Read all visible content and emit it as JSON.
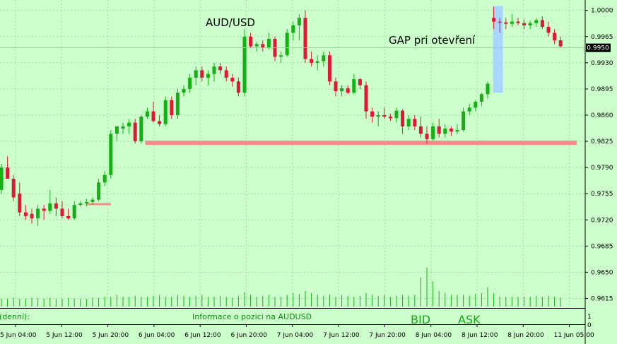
{
  "chart_data": {
    "type": "candlestick",
    "title": "AUD/USD",
    "annotation": "GAP pri otevření",
    "ylim": [
      0.9606,
      1.0012
    ],
    "y_ticks": [
      "1.0000",
      "0.9965",
      "0.9930",
      "0.9895",
      "0.9860",
      "0.9825",
      "0.9790",
      "0.9755",
      "0.9720",
      "0.9685",
      "0.9650",
      "0.9615"
    ],
    "current_price": "0.9950",
    "x_tick_labels": [
      "5 Jun 04:00",
      "5 Jun 12:00",
      "5 Jun 20:00",
      "6 Jun 04:00",
      "6 Jun 12:00",
      "6 Jun 20:00",
      "7 Jun 04:00",
      "7 Jun 12:00",
      "7 Jun 20:00",
      "8 Jun 04:00",
      "8 Jun 12:00",
      "8 Jun 20:00",
      "11 Jun 05:00"
    ],
    "candles": [
      {
        "o": 0.976,
        "h": 0.9795,
        "l": 0.9755,
        "c": 0.979
      },
      {
        "o": 0.979,
        "h": 0.9805,
        "l": 0.9775,
        "c": 0.9775
      },
      {
        "o": 0.9775,
        "h": 0.978,
        "l": 0.9745,
        "c": 0.975
      },
      {
        "o": 0.9755,
        "h": 0.977,
        "l": 0.9725,
        "c": 0.973
      },
      {
        "o": 0.973,
        "h": 0.974,
        "l": 0.972,
        "c": 0.9725
      },
      {
        "o": 0.9728,
        "h": 0.9735,
        "l": 0.9715,
        "c": 0.9722
      },
      {
        "o": 0.9722,
        "h": 0.974,
        "l": 0.9712,
        "c": 0.9735
      },
      {
        "o": 0.9735,
        "h": 0.974,
        "l": 0.972,
        "c": 0.9732
      },
      {
        "o": 0.9732,
        "h": 0.976,
        "l": 0.9728,
        "c": 0.9742
      },
      {
        "o": 0.9742,
        "h": 0.975,
        "l": 0.9725,
        "c": 0.9735
      },
      {
        "o": 0.9735,
        "h": 0.9745,
        "l": 0.9722,
        "c": 0.9725
      },
      {
        "o": 0.9725,
        "h": 0.9735,
        "l": 0.972,
        "c": 0.9722
      },
      {
        "o": 0.9722,
        "h": 0.9745,
        "l": 0.972,
        "c": 0.974
      },
      {
        "o": 0.974,
        "h": 0.9745,
        "l": 0.9738,
        "c": 0.9742
      },
      {
        "o": 0.9742,
        "h": 0.9748,
        "l": 0.9738,
        "c": 0.9744
      },
      {
        "o": 0.9744,
        "h": 0.975,
        "l": 0.974,
        "c": 0.9747
      },
      {
        "o": 0.9747,
        "h": 0.9775,
        "l": 0.9745,
        "c": 0.977
      },
      {
        "o": 0.977,
        "h": 0.9785,
        "l": 0.9765,
        "c": 0.978
      },
      {
        "o": 0.978,
        "h": 0.984,
        "l": 0.9775,
        "c": 0.9835
      },
      {
        "o": 0.9835,
        "h": 0.9845,
        "l": 0.9825,
        "c": 0.9845
      },
      {
        "o": 0.9842,
        "h": 0.985,
        "l": 0.9835,
        "c": 0.9845
      },
      {
        "o": 0.9845,
        "h": 0.9855,
        "l": 0.9835,
        "c": 0.985
      },
      {
        "o": 0.985,
        "h": 0.9855,
        "l": 0.9822,
        "c": 0.9825
      },
      {
        "o": 0.9825,
        "h": 0.986,
        "l": 0.9822,
        "c": 0.9858
      },
      {
        "o": 0.9858,
        "h": 0.987,
        "l": 0.9855,
        "c": 0.9865
      },
      {
        "o": 0.9865,
        "h": 0.9878,
        "l": 0.985,
        "c": 0.9852
      },
      {
        "o": 0.9852,
        "h": 0.986,
        "l": 0.9845,
        "c": 0.9848
      },
      {
        "o": 0.9848,
        "h": 0.9885,
        "l": 0.9845,
        "c": 0.988
      },
      {
        "o": 0.988,
        "h": 0.9885,
        "l": 0.9855,
        "c": 0.986
      },
      {
        "o": 0.986,
        "h": 0.9895,
        "l": 0.9855,
        "c": 0.989
      },
      {
        "o": 0.989,
        "h": 0.99,
        "l": 0.9885,
        "c": 0.9895
      },
      {
        "o": 0.9895,
        "h": 0.9915,
        "l": 0.989,
        "c": 0.991
      },
      {
        "o": 0.991,
        "h": 0.9925,
        "l": 0.99,
        "c": 0.992
      },
      {
        "o": 0.992,
        "h": 0.9925,
        "l": 0.9905,
        "c": 0.991
      },
      {
        "o": 0.991,
        "h": 0.992,
        "l": 0.99,
        "c": 0.9915
      },
      {
        "o": 0.9915,
        "h": 0.993,
        "l": 0.9905,
        "c": 0.9925
      },
      {
        "o": 0.9925,
        "h": 0.993,
        "l": 0.9915,
        "c": 0.992
      },
      {
        "o": 0.992,
        "h": 0.9925,
        "l": 0.9905,
        "c": 0.991
      },
      {
        "o": 0.991,
        "h": 0.9915,
        "l": 0.9898,
        "c": 0.9905
      },
      {
        "o": 0.9905,
        "h": 0.991,
        "l": 0.9885,
        "c": 0.989
      },
      {
        "o": 0.989,
        "h": 0.9975,
        "l": 0.9885,
        "c": 0.9965
      },
      {
        "o": 0.9965,
        "h": 0.997,
        "l": 0.995,
        "c": 0.9952
      },
      {
        "o": 0.9952,
        "h": 0.9958,
        "l": 0.9945,
        "c": 0.9955
      },
      {
        "o": 0.9955,
        "h": 0.996,
        "l": 0.9945,
        "c": 0.995
      },
      {
        "o": 0.995,
        "h": 0.997,
        "l": 0.9948,
        "c": 0.9962
      },
      {
        "o": 0.9962,
        "h": 0.9965,
        "l": 0.9932,
        "c": 0.9938
      },
      {
        "o": 0.9938,
        "h": 0.9945,
        "l": 0.993,
        "c": 0.994
      },
      {
        "o": 0.994,
        "h": 0.9975,
        "l": 0.9938,
        "c": 0.997
      },
      {
        "o": 0.997,
        "h": 0.9985,
        "l": 0.996,
        "c": 0.998
      },
      {
        "o": 0.998,
        "h": 0.9995,
        "l": 0.996,
        "c": 0.999
      },
      {
        "o": 0.999,
        "h": 1.0,
        "l": 0.993,
        "c": 0.9935
      },
      {
        "o": 0.9935,
        "h": 0.9945,
        "l": 0.9925,
        "c": 0.993
      },
      {
        "o": 0.993,
        "h": 0.994,
        "l": 0.992,
        "c": 0.9932
      },
      {
        "o": 0.9932,
        "h": 0.9945,
        "l": 0.9925,
        "c": 0.994
      },
      {
        "o": 0.994,
        "h": 0.9945,
        "l": 0.99,
        "c": 0.9905
      },
      {
        "o": 0.9905,
        "h": 0.991,
        "l": 0.9885,
        "c": 0.9892
      },
      {
        "o": 0.9892,
        "h": 0.99,
        "l": 0.9885,
        "c": 0.9896
      },
      {
        "o": 0.9896,
        "h": 0.99,
        "l": 0.9888,
        "c": 0.989
      },
      {
        "o": 0.989,
        "h": 0.9915,
        "l": 0.9888,
        "c": 0.9908
      },
      {
        "o": 0.9908,
        "h": 0.991,
        "l": 0.9895,
        "c": 0.99
      },
      {
        "o": 0.99,
        "h": 0.9905,
        "l": 0.9855,
        "c": 0.9865
      },
      {
        "o": 0.9865,
        "h": 0.987,
        "l": 0.985,
        "c": 0.9858
      },
      {
        "o": 0.9858,
        "h": 0.9865,
        "l": 0.9845,
        "c": 0.986
      },
      {
        "o": 0.986,
        "h": 0.987,
        "l": 0.9855,
        "c": 0.9858
      },
      {
        "o": 0.9858,
        "h": 0.9862,
        "l": 0.9852,
        "c": 0.9856
      },
      {
        "o": 0.9856,
        "h": 0.987,
        "l": 0.985,
        "c": 0.9866
      },
      {
        "o": 0.9866,
        "h": 0.9868,
        "l": 0.9835,
        "c": 0.9845
      },
      {
        "o": 0.9845,
        "h": 0.986,
        "l": 0.984,
        "c": 0.9855
      },
      {
        "o": 0.9855,
        "h": 0.986,
        "l": 0.984,
        "c": 0.9845
      },
      {
        "o": 0.9845,
        "h": 0.9858,
        "l": 0.983,
        "c": 0.9835
      },
      {
        "o": 0.9835,
        "h": 0.9845,
        "l": 0.9822,
        "c": 0.9828
      },
      {
        "o": 0.9828,
        "h": 0.985,
        "l": 0.9826,
        "c": 0.9845
      },
      {
        "o": 0.9845,
        "h": 0.9855,
        "l": 0.983,
        "c": 0.9835
      },
      {
        "o": 0.9835,
        "h": 0.9848,
        "l": 0.983,
        "c": 0.9842
      },
      {
        "o": 0.9842,
        "h": 0.9845,
        "l": 0.9832,
        "c": 0.9838
      },
      {
        "o": 0.9838,
        "h": 0.9848,
        "l": 0.9835,
        "c": 0.984
      },
      {
        "o": 0.984,
        "h": 0.987,
        "l": 0.9838,
        "c": 0.9865
      },
      {
        "o": 0.9865,
        "h": 0.9875,
        "l": 0.986,
        "c": 0.987
      },
      {
        "o": 0.987,
        "h": 0.988,
        "l": 0.9865,
        "c": 0.9878
      },
      {
        "o": 0.9878,
        "h": 0.989,
        "l": 0.9872,
        "c": 0.9888
      },
      {
        "o": 0.9888,
        "h": 0.9905,
        "l": 0.9882,
        "c": 0.9902
      },
      {
        "o": 0.999,
        "h": 1.0005,
        "l": 0.9975,
        "c": 0.9985
      },
      {
        "o": 0.9985,
        "h": 0.999,
        "l": 0.997,
        "c": 0.9984
      },
      {
        "o": 0.9984,
        "h": 0.999,
        "l": 0.9975,
        "c": 0.9982
      },
      {
        "o": 0.9982,
        "h": 0.9995,
        "l": 0.9978,
        "c": 0.9985
      },
      {
        "o": 0.9985,
        "h": 0.999,
        "l": 0.998,
        "c": 0.9983
      },
      {
        "o": 0.9983,
        "h": 0.9988,
        "l": 0.9975,
        "c": 0.998
      },
      {
        "o": 0.998,
        "h": 0.9986,
        "l": 0.9975,
        "c": 0.9983
      },
      {
        "o": 0.9983,
        "h": 0.999,
        "l": 0.9978,
        "c": 0.9987
      },
      {
        "o": 0.9987,
        "h": 0.9992,
        "l": 0.9975,
        "c": 0.9978
      },
      {
        "o": 0.9978,
        "h": 0.9985,
        "l": 0.9965,
        "c": 0.997
      },
      {
        "o": 0.997,
        "h": 0.9975,
        "l": 0.9955,
        "c": 0.996
      },
      {
        "o": 0.996,
        "h": 0.9965,
        "l": 0.995,
        "c": 0.9952
      }
    ],
    "support_line": {
      "y": 0.9823,
      "from_index": 24
    },
    "short_level": {
      "y": 0.9741,
      "from_index": 14,
      "to_index": 18
    },
    "gap_index": 81,
    "gap_range": [
      0.989,
      1.0006
    ],
    "volume_max": 40,
    "volume_labels": [
      "1",
      "0"
    ],
    "volumes": [
      8,
      8,
      9,
      8,
      8,
      9,
      9,
      8,
      9,
      8,
      8,
      9,
      8,
      8,
      8,
      9,
      9,
      10,
      10,
      12,
      10,
      10,
      11,
      10,
      10,
      11,
      12,
      10,
      10,
      12,
      11,
      10,
      11,
      12,
      10,
      10,
      11,
      10,
      9,
      11,
      15,
      12,
      10,
      11,
      12,
      10,
      10,
      12,
      14,
      13,
      16,
      14,
      12,
      11,
      12,
      10,
      12,
      11,
      10,
      11,
      14,
      12,
      11,
      12,
      10,
      11,
      12,
      11,
      12,
      30,
      40,
      26,
      16,
      14,
      12,
      12,
      12,
      11,
      13,
      14,
      20,
      14,
      10,
      10,
      10,
      10,
      10,
      10,
      11,
      10,
      11,
      10,
      9
    ],
    "colors": {
      "up": "#16b016",
      "down": "#dd1a33",
      "support": "#f78a8a",
      "gap": "#a9d5ff",
      "background": "#ccffcc",
      "grid": "#9fdc9f"
    },
    "info_panel": {
      "label": "(denní):",
      "position_info": "Informace o pozici na AUDUSD",
      "bid": "BID",
      "ask": "ASK"
    }
  }
}
